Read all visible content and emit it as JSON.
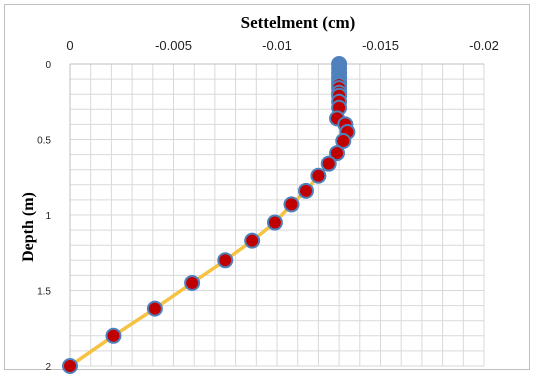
{
  "chart_data": {
    "type": "scatter",
    "title": "Settelment (cm)",
    "xlabel": "Settelment (cm)",
    "ylabel": "Depth (m)",
    "x_axis_position": "top",
    "x_reversed": true,
    "y_reversed": true,
    "xlim": [
      0,
      -0.02
    ],
    "ylim": [
      0,
      2
    ],
    "x_ticks": [
      0,
      -0.005,
      -0.01,
      -0.015,
      -0.02
    ],
    "x_tick_labels": [
      "0",
      "-0.005",
      "-0.01",
      "-0.015",
      "-0.02"
    ],
    "y_ticks": [
      0,
      0.5,
      1,
      1.5,
      2
    ],
    "y_tick_labels": [
      "0",
      "0.5",
      "1",
      "1.5",
      "2"
    ],
    "grid": true,
    "legend": "none",
    "colors": {
      "line": "#f5c242",
      "marker_fill": "#c00000",
      "marker_edge": "#4f81bd",
      "marker_blue": "#4f81bd",
      "grid": "#d9d9d9"
    },
    "series": [
      {
        "points": [
          {
            "x": -0.013,
            "y": 0.0,
            "style": "blue"
          },
          {
            "x": -0.013,
            "y": 0.03,
            "style": "blue"
          },
          {
            "x": -0.013,
            "y": 0.06,
            "style": "blue"
          },
          {
            "x": -0.013,
            "y": 0.09,
            "style": "blue"
          },
          {
            "x": -0.013,
            "y": 0.12,
            "style": "blue"
          },
          {
            "x": -0.013,
            "y": 0.14,
            "style": "red"
          },
          {
            "x": -0.013,
            "y": 0.16,
            "style": "red"
          },
          {
            "x": -0.013,
            "y": 0.19,
            "style": "red"
          },
          {
            "x": -0.013,
            "y": 0.21,
            "style": "red"
          },
          {
            "x": -0.013,
            "y": 0.25,
            "style": "red"
          },
          {
            "x": -0.013,
            "y": 0.29,
            "style": "red"
          },
          {
            "x": -0.0129,
            "y": 0.36,
            "style": "red"
          },
          {
            "x": -0.0133,
            "y": 0.4,
            "style": "red"
          },
          {
            "x": -0.0134,
            "y": 0.45,
            "style": "red"
          },
          {
            "x": -0.0132,
            "y": 0.51,
            "style": "red"
          },
          {
            "x": -0.0129,
            "y": 0.59,
            "style": "red"
          },
          {
            "x": -0.0125,
            "y": 0.66,
            "style": "red"
          },
          {
            "x": -0.012,
            "y": 0.74,
            "style": "red"
          },
          {
            "x": -0.0114,
            "y": 0.84,
            "style": "red"
          },
          {
            "x": -0.0107,
            "y": 0.93,
            "style": "red"
          },
          {
            "x": -0.0099,
            "y": 1.05,
            "style": "red"
          },
          {
            "x": -0.0088,
            "y": 1.17,
            "style": "red"
          },
          {
            "x": -0.0075,
            "y": 1.3,
            "style": "red"
          },
          {
            "x": -0.0059,
            "y": 1.45,
            "style": "red"
          },
          {
            "x": -0.0041,
            "y": 1.62,
            "style": "red"
          },
          {
            "x": -0.0021,
            "y": 1.8,
            "style": "red"
          },
          {
            "x": 0.0,
            "y": 2.0,
            "style": "red"
          }
        ]
      }
    ]
  }
}
